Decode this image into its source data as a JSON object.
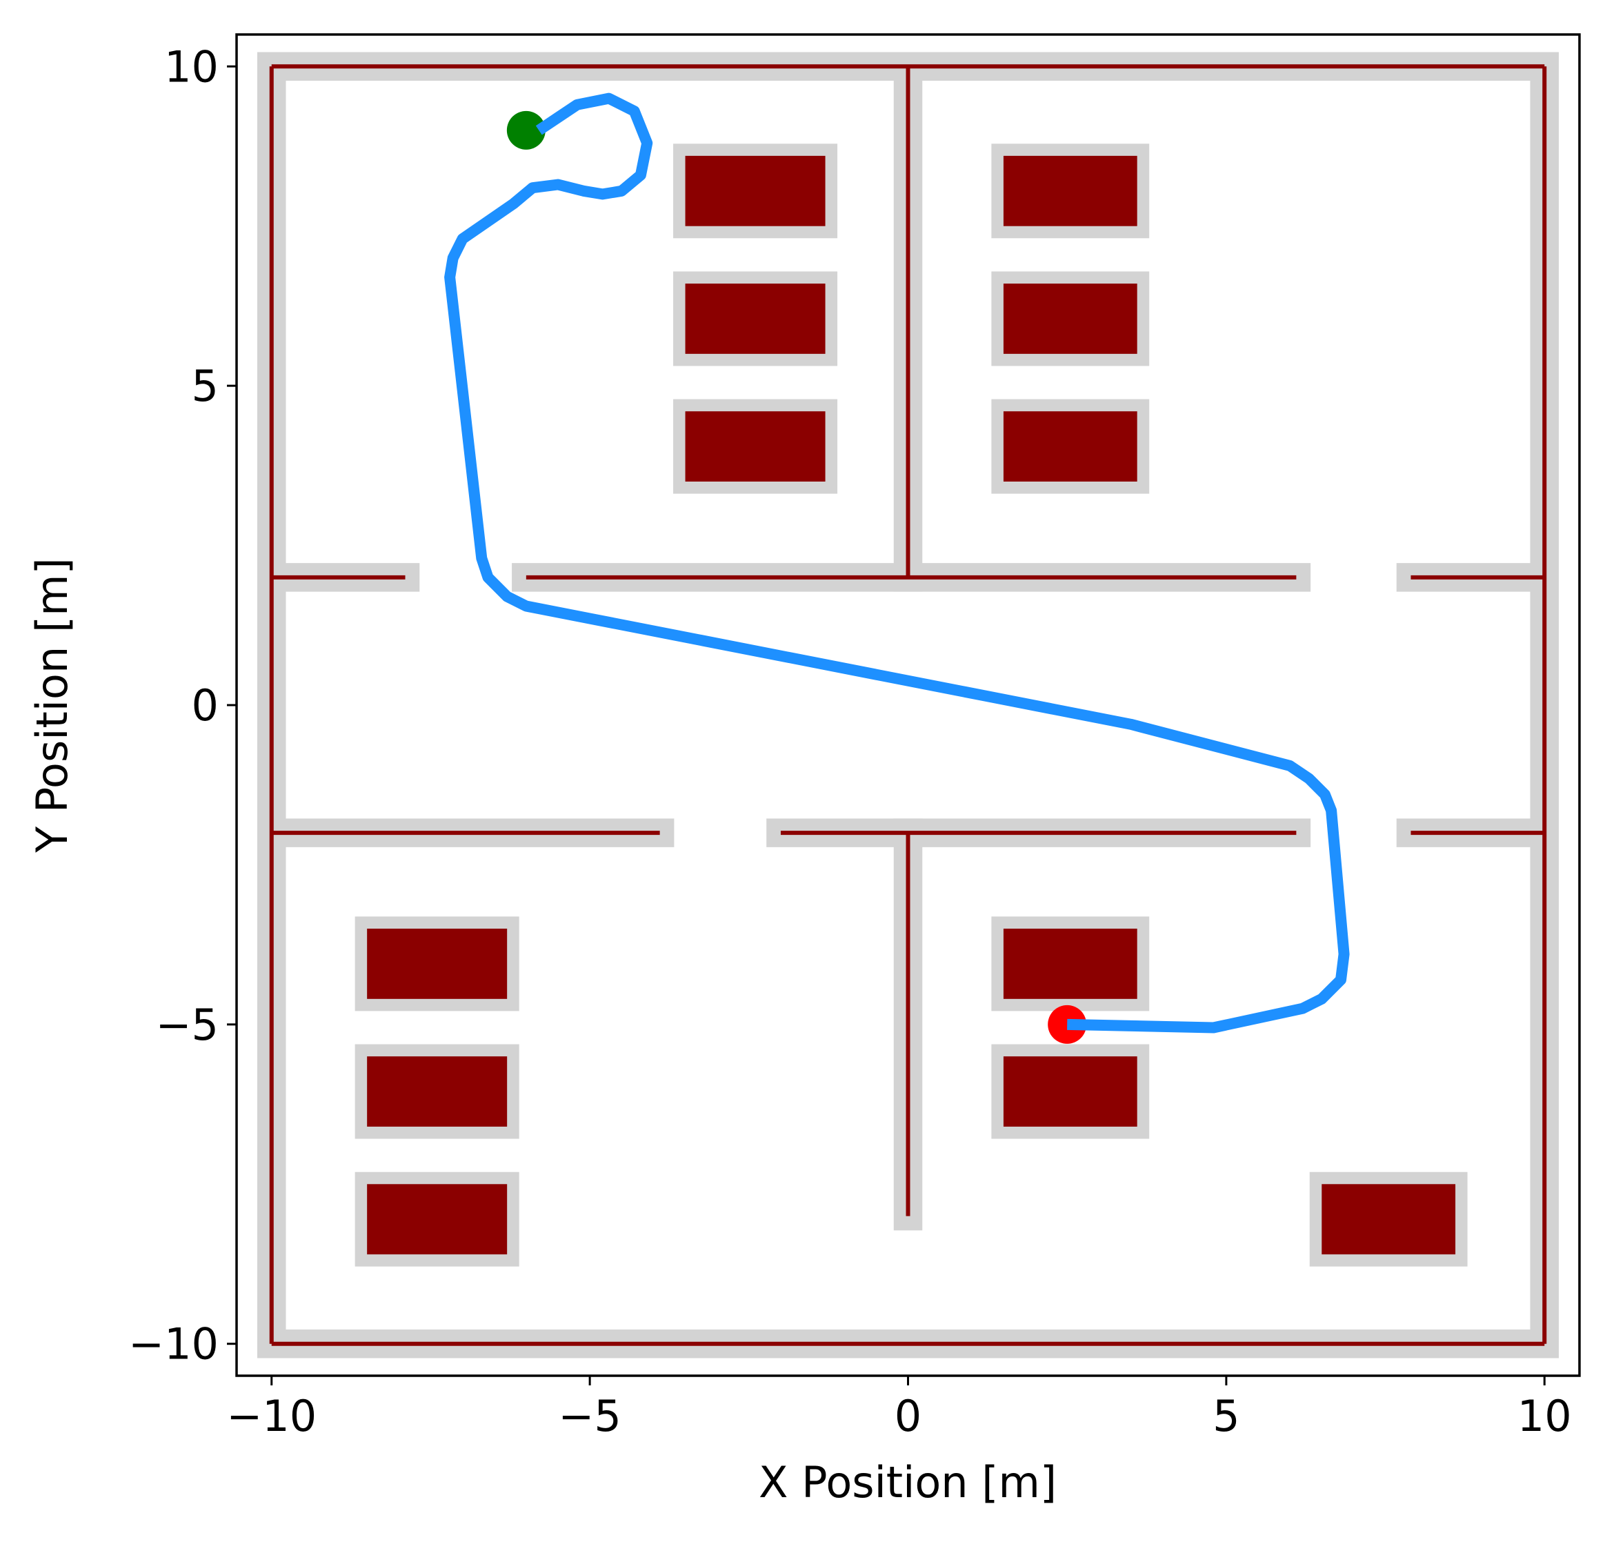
{
  "chart_data": {
    "type": "line",
    "title": "",
    "xlabel": "X Position [m]",
    "ylabel": "Y Position [m]",
    "xlim": [
      -10.55,
      10.55
    ],
    "ylim": [
      -10.5,
      10.5
    ],
    "grid": false,
    "legend": "none",
    "xticks": [
      -10,
      -5,
      0,
      5,
      10
    ],
    "yticks": [
      -10,
      -5,
      0,
      5,
      10
    ],
    "xtick_labels": [
      "−10",
      "−5",
      "0",
      "5",
      "10"
    ],
    "ytick_labels": [
      "−10",
      "−5",
      "0",
      "5",
      "10"
    ],
    "colors": {
      "wall": "#8b0000",
      "inflation": "#d3d3d3",
      "path": "#1e90ff",
      "start": "#008000",
      "goal": "#ff0000"
    },
    "walls": [
      [
        [
          -10,
          -10
        ],
        [
          10,
          -10
        ]
      ],
      [
        [
          10,
          -10
        ],
        [
          10,
          10
        ]
      ],
      [
        [
          10,
          10
        ],
        [
          -10,
          10
        ]
      ],
      [
        [
          -10,
          10
        ],
        [
          -10,
          -10
        ]
      ],
      [
        [
          -10,
          2
        ],
        [
          -7.9,
          2
        ]
      ],
      [
        [
          -6,
          2
        ],
        [
          6.1,
          2
        ]
      ],
      [
        [
          7.9,
          2
        ],
        [
          10,
          2
        ]
      ],
      [
        [
          -10,
          -2
        ],
        [
          -3.9,
          -2
        ]
      ],
      [
        [
          -2,
          -2
        ],
        [
          6.1,
          -2
        ]
      ],
      [
        [
          7.9,
          -2
        ],
        [
          10,
          -2
        ]
      ],
      [
        [
          0,
          2
        ],
        [
          0,
          10
        ]
      ],
      [
        [
          0,
          -2
        ],
        [
          0,
          -8
        ]
      ]
    ],
    "obstacles": [
      {
        "x": [
          -3.5,
          -1.3
        ],
        "y": [
          7.5,
          8.6
        ]
      },
      {
        "x": [
          -3.5,
          -1.3
        ],
        "y": [
          5.5,
          6.6
        ]
      },
      {
        "x": [
          -3.5,
          -1.3
        ],
        "y": [
          3.5,
          4.6
        ]
      },
      {
        "x": [
          1.5,
          3.6
        ],
        "y": [
          7.5,
          8.6
        ]
      },
      {
        "x": [
          1.5,
          3.6
        ],
        "y": [
          5.5,
          6.6
        ]
      },
      {
        "x": [
          1.5,
          3.6
        ],
        "y": [
          3.5,
          4.6
        ]
      },
      {
        "x": [
          -8.5,
          -6.3
        ],
        "y": [
          -4.6,
          -3.5
        ]
      },
      {
        "x": [
          -8.5,
          -6.3
        ],
        "y": [
          -6.6,
          -5.5
        ]
      },
      {
        "x": [
          -8.5,
          -6.3
        ],
        "y": [
          -8.6,
          -7.5
        ]
      },
      {
        "x": [
          1.5,
          3.6
        ],
        "y": [
          -4.6,
          -3.5
        ]
      },
      {
        "x": [
          1.5,
          3.6
        ],
        "y": [
          -6.6,
          -5.5
        ]
      },
      {
        "x": [
          6.5,
          8.6
        ],
        "y": [
          -8.6,
          -7.5
        ]
      }
    ],
    "path": {
      "x": [
        -5.8,
        -5.5,
        -5.2,
        -4.7,
        -4.3,
        -4.1,
        -4.2,
        -4.5,
        -4.8,
        -5.1,
        -5.5,
        -5.9,
        -6.2,
        -7.0,
        -7.15,
        -7.2,
        -6.7,
        -6.6,
        -6.3,
        -6.0,
        3.5,
        6.0,
        6.3,
        6.55,
        6.65,
        6.65,
        6.85,
        6.8,
        6.5,
        6.2,
        4.8,
        2.5
      ],
      "y": [
        9.0,
        9.2,
        9.4,
        9.5,
        9.3,
        8.8,
        8.3,
        8.05,
        8.0,
        8.05,
        8.15,
        8.1,
        7.85,
        7.3,
        7.0,
        6.7,
        2.3,
        2.0,
        1.7,
        1.55,
        -0.3,
        -0.95,
        -1.15,
        -1.4,
        -1.65,
        -1.65,
        -3.9,
        -4.3,
        -4.6,
        -4.75,
        -5.05,
        -5.0
      ]
    },
    "start": {
      "x": -6.0,
      "y": 9.0
    },
    "goal": {
      "x": 2.5,
      "y": -5.0
    }
  }
}
